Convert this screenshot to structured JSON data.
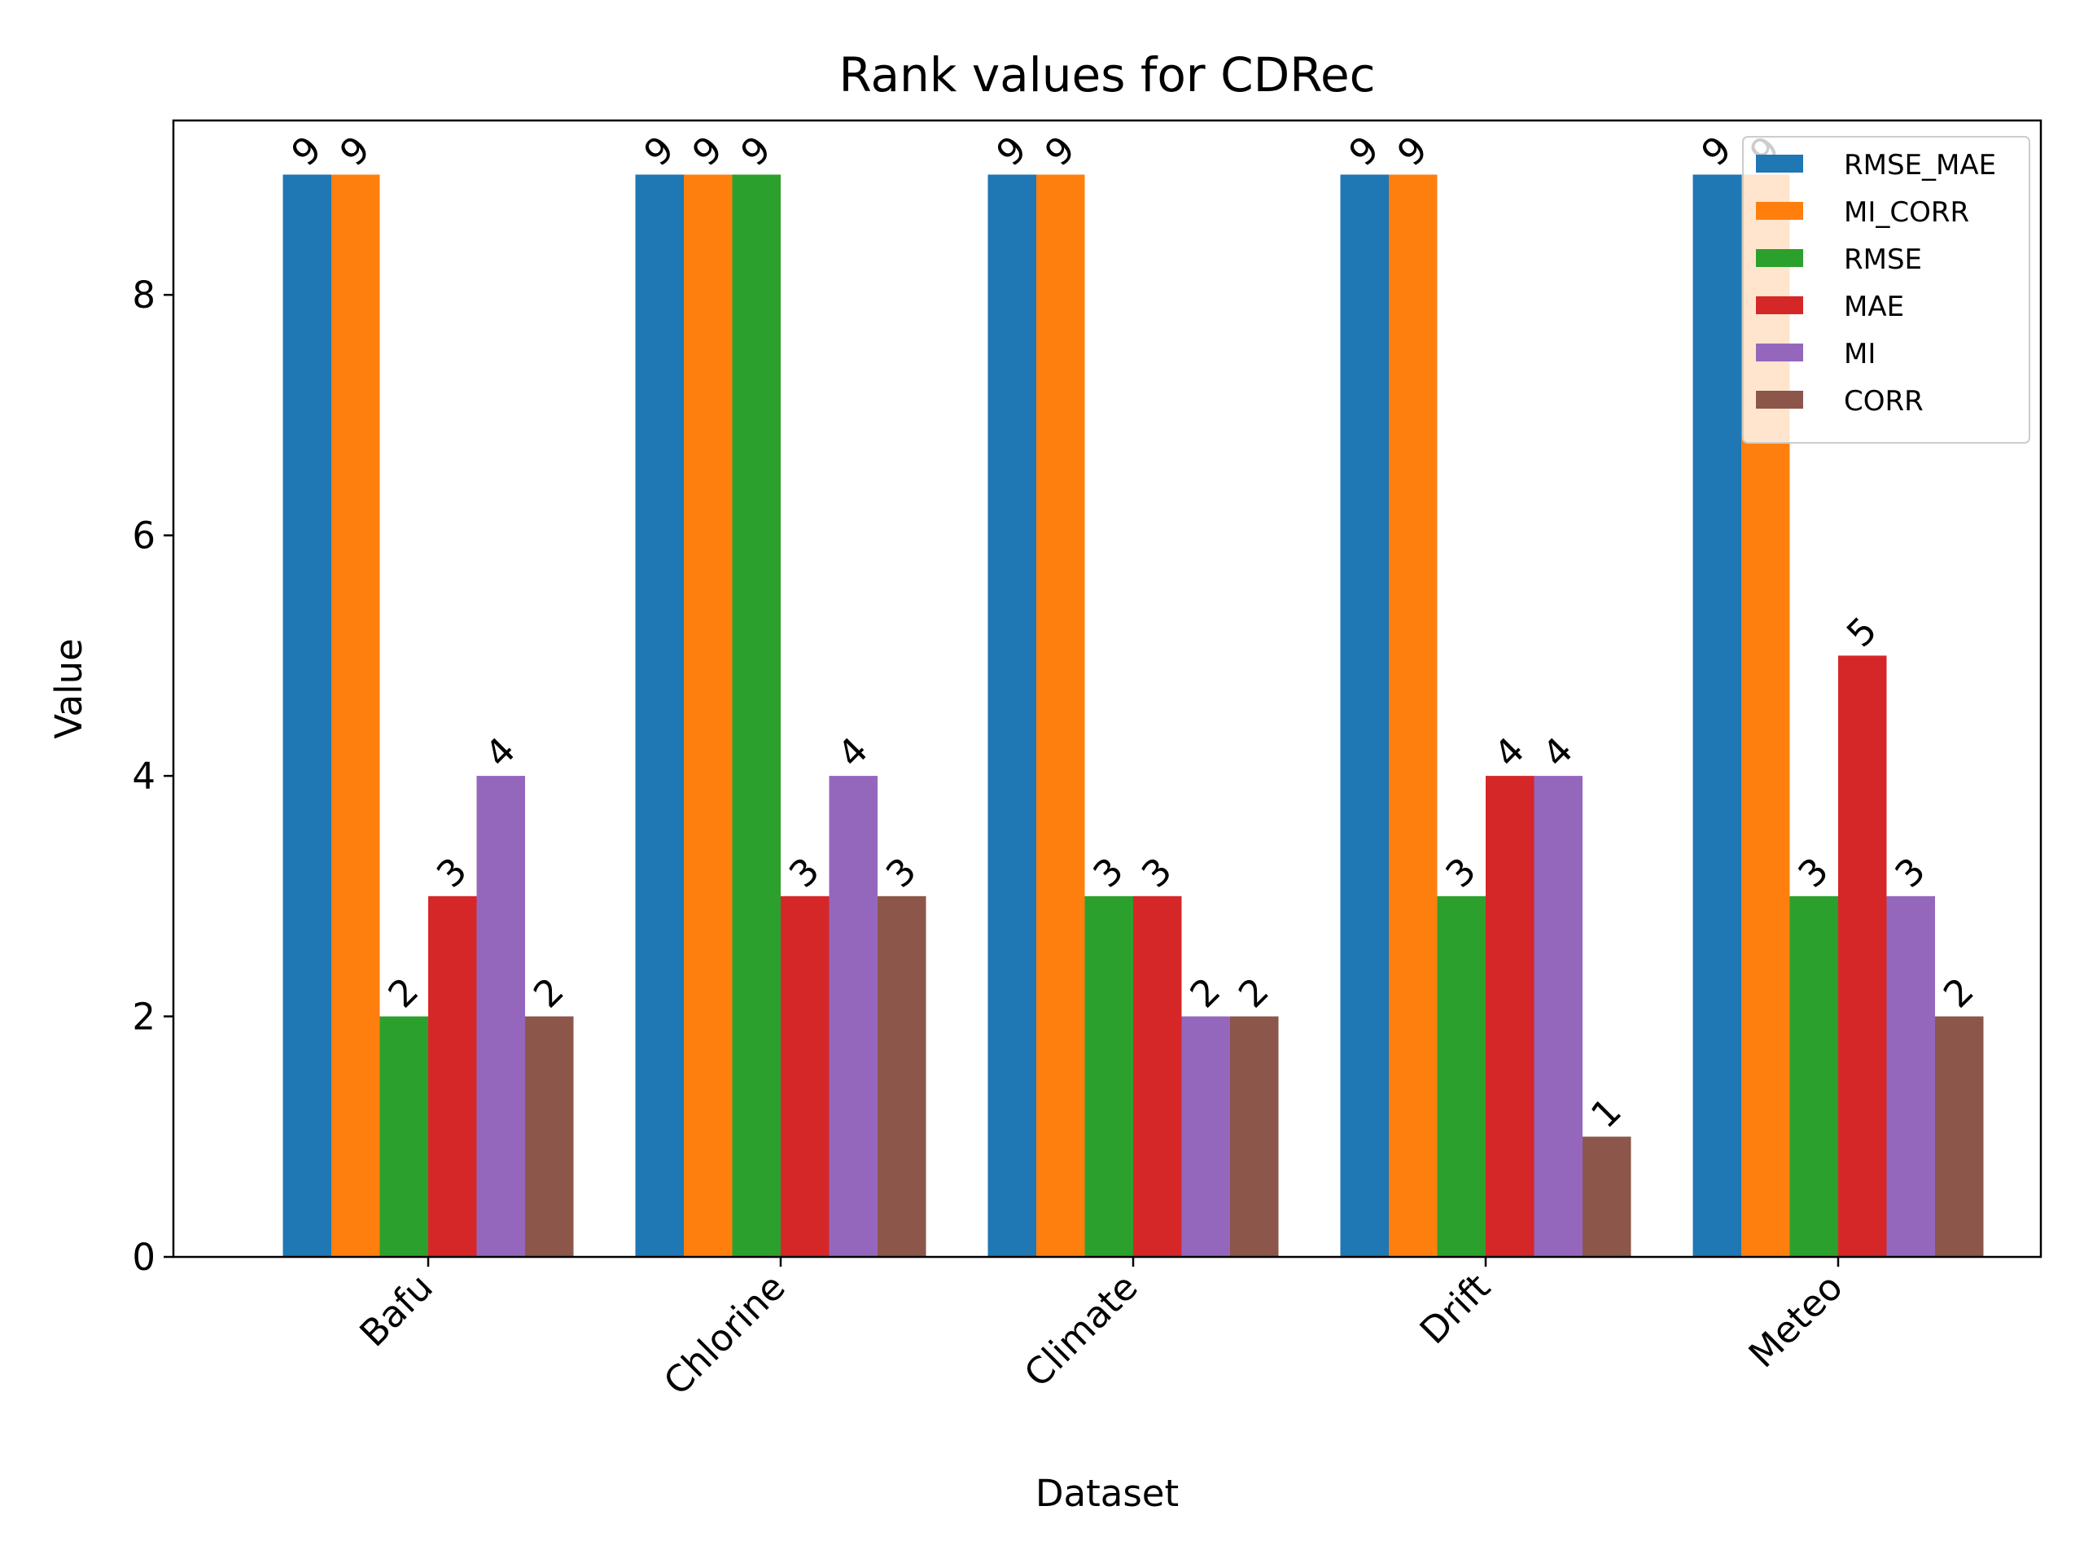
{
  "chart_data": {
    "type": "bar",
    "title": "Rank values for CDRec",
    "xlabel": "Dataset",
    "ylabel": "Value",
    "categories": [
      "Bafu",
      "Chlorine",
      "Climate",
      "Drift",
      "Meteo"
    ],
    "ylim": [
      0,
      9.45
    ],
    "yticks": [
      0,
      2,
      4,
      6,
      8
    ],
    "legend_position": "top-right",
    "series": [
      {
        "name": "RMSE_MAE",
        "color": "#1f77b4",
        "values": [
          9,
          9,
          9,
          9,
          9
        ]
      },
      {
        "name": "MI_CORR",
        "color": "#ff7f0e",
        "values": [
          9,
          9,
          9,
          9,
          9
        ]
      },
      {
        "name": "RMSE",
        "color": "#2ca02c",
        "values": [
          2,
          9,
          3,
          3,
          3
        ]
      },
      {
        "name": "MAE",
        "color": "#d62728",
        "values": [
          3,
          3,
          3,
          4,
          5
        ]
      },
      {
        "name": "MI",
        "color": "#9467bd",
        "values": [
          4,
          4,
          2,
          4,
          3
        ]
      },
      {
        "name": "CORR",
        "color": "#8c564b",
        "values": [
          2,
          3,
          2,
          1,
          2
        ]
      }
    ]
  }
}
